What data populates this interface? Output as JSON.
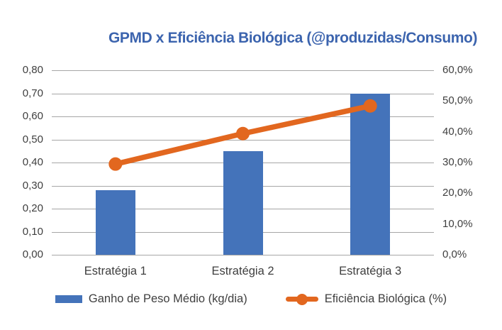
{
  "title": "GPMD x Eficiência Biológica (@produzidas/Consumo)",
  "colors": {
    "title": "#3C64AE",
    "bar": "#4473BA",
    "line": "#E2671F",
    "grid": "#A6A6A6",
    "axis_text": "#3F3F3F",
    "background": "#FFFFFF"
  },
  "chart_data": {
    "type": "combo-bar-line",
    "title": "GPMD x Eficiência Biológica (@produzidas/Consumo)",
    "categories": [
      "Estratégia 1",
      "Estratégia 2",
      "Estratégia 3"
    ],
    "series": [
      {
        "name": "Ganho de Peso Médio (kg/dia)",
        "type": "bar",
        "axis": "left",
        "color": "#4473BA",
        "values": [
          0.28,
          0.45,
          0.7
        ]
      },
      {
        "name": "Eficiência Biológica (%)",
        "type": "line",
        "axis": "right",
        "color": "#E2671F",
        "values": [
          29.5,
          39.4,
          48.4
        ]
      }
    ],
    "left_axis": {
      "min": 0,
      "max": 0.8,
      "tick_labels": [
        "0,00",
        "0,10",
        "0,20",
        "0,30",
        "0,40",
        "0,50",
        "0,60",
        "0,70",
        "0,80"
      ]
    },
    "right_axis": {
      "min": 0,
      "max": 60,
      "tick_labels": [
        "0,0%",
        "10,0%",
        "20,0%",
        "30,0%",
        "40,0%",
        "50,0%",
        "60,0%"
      ]
    },
    "grid": true,
    "legend_position": "bottom"
  },
  "legend": [
    {
      "label": "Ganho de Peso Médio (kg/dia)",
      "swatch": "bar"
    },
    {
      "label": "Eficiência Biológica (%)",
      "swatch": "line-marker"
    }
  ]
}
